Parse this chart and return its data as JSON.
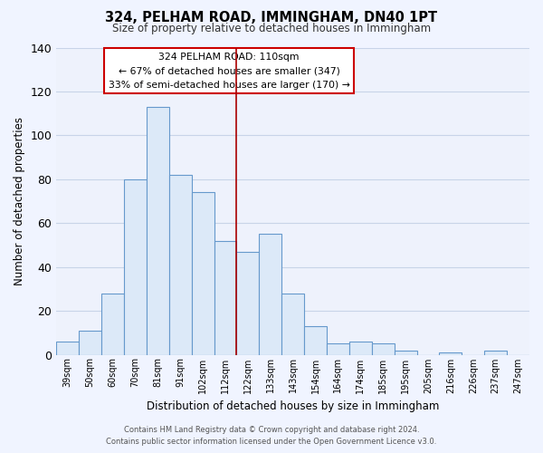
{
  "title": "324, PELHAM ROAD, IMMINGHAM, DN40 1PT",
  "subtitle": "Size of property relative to detached houses in Immingham",
  "xlabel": "Distribution of detached houses by size in Immingham",
  "ylabel": "Number of detached properties",
  "categories": [
    "39sqm",
    "50sqm",
    "60sqm",
    "70sqm",
    "81sqm",
    "91sqm",
    "102sqm",
    "112sqm",
    "122sqm",
    "133sqm",
    "143sqm",
    "154sqm",
    "164sqm",
    "174sqm",
    "185sqm",
    "195sqm",
    "205sqm",
    "216sqm",
    "226sqm",
    "237sqm",
    "247sqm"
  ],
  "values": [
    6,
    11,
    28,
    80,
    113,
    82,
    74,
    52,
    47,
    55,
    28,
    13,
    5,
    6,
    5,
    2,
    0,
    1,
    0,
    2,
    0
  ],
  "bar_color": "#dce9f8",
  "bar_edge_color": "#6699cc",
  "ylim": [
    0,
    140
  ],
  "yticks": [
    0,
    20,
    40,
    60,
    80,
    100,
    120,
    140
  ],
  "vline_index": 7,
  "vline_color": "#aa0000",
  "annotation_title": "324 PELHAM ROAD: 110sqm",
  "annotation_line1": "← 67% of detached houses are smaller (347)",
  "annotation_line2": "33% of semi-detached houses are larger (170) →",
  "annotation_box_facecolor": "#ffffff",
  "annotation_box_edgecolor": "#cc0000",
  "footnote1": "Contains HM Land Registry data © Crown copyright and database right 2024.",
  "footnote2": "Contains public sector information licensed under the Open Government Licence v3.0.",
  "background_color": "#f0f4ff",
  "plot_bg_color": "#eef2fc",
  "grid_color": "#c8d4e8"
}
